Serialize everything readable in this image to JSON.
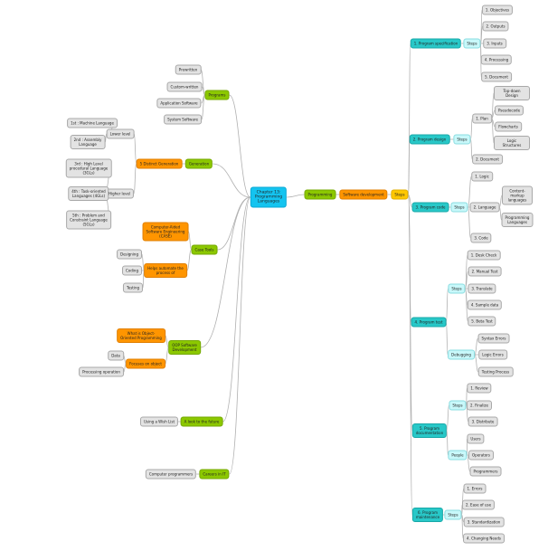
{
  "colors": {
    "root": "#14c4f0",
    "branch": "#8cc800",
    "sub": "#ff9500",
    "steps_hub": "#ffc800",
    "phase": "#28c8c8",
    "step_group": "#c8f8fa",
    "leaf": "#e3e3e3",
    "link": "#b0b0b0"
  },
  "nodes": [
    {
      "id": "root",
      "label": "Chapter 13:\nProgramming\nLanguages",
      "parent": null,
      "style": "cyan root"
    },
    {
      "id": "programs",
      "label": "Programs",
      "parent": "root",
      "style": "green"
    },
    {
      "id": "prewritten",
      "label": "Prewritten",
      "parent": "programs",
      "style": "grey"
    },
    {
      "id": "custom",
      "label": "Custom-written",
      "parent": "programs",
      "style": "grey"
    },
    {
      "id": "appsw",
      "label": "Application Software",
      "parent": "programs",
      "style": "grey"
    },
    {
      "id": "syssw",
      "label": "System Software",
      "parent": "programs",
      "style": "grey"
    },
    {
      "id": "generation",
      "label": "Generation",
      "parent": "root",
      "style": "green"
    },
    {
      "id": "fivegen",
      "label": "5 Distinct Generation",
      "parent": "generation",
      "style": "orange"
    },
    {
      "id": "lower",
      "label": "Lower level",
      "parent": "fivegen",
      "style": "grey"
    },
    {
      "id": "gen1",
      "label": "1st : Machine Language",
      "parent": "lower",
      "style": "grey"
    },
    {
      "id": "gen2",
      "label": "2nd : Assembly\nLanguage",
      "parent": "lower",
      "style": "grey"
    },
    {
      "id": "higher",
      "label": "Higher level",
      "parent": "fivegen",
      "style": "grey"
    },
    {
      "id": "gen3",
      "label": "3rd : High Level\nprocedural Language\n(3GLs)",
      "parent": "higher",
      "style": "grey"
    },
    {
      "id": "gen4",
      "label": "4th : Task-oriented\nLanguages (4GLs)",
      "parent": "higher",
      "style": "grey"
    },
    {
      "id": "gen5",
      "label": "5th : Problem and\nConstraint Language\n(5GLs)",
      "parent": "higher",
      "style": "grey"
    },
    {
      "id": "casetools",
      "label": "Case Tools",
      "parent": "root",
      "style": "green"
    },
    {
      "id": "case",
      "label": "Computer-Aided\nSoftware Engineering\n(CASE)",
      "parent": "casetools",
      "style": "orange"
    },
    {
      "id": "helps",
      "label": "Helps automate the\nprocess of",
      "parent": "casetools",
      "style": "orange"
    },
    {
      "id": "designing",
      "label": "Designing",
      "parent": "helps",
      "style": "grey"
    },
    {
      "id": "coding",
      "label": "Coding",
      "parent": "helps",
      "style": "grey"
    },
    {
      "id": "testing",
      "label": "Testing",
      "parent": "helps",
      "style": "grey"
    },
    {
      "id": "oop",
      "label": "OOP Software\nDevelopment",
      "parent": "root",
      "style": "green"
    },
    {
      "id": "whatoop",
      "label": "What is Object-\nOriented Programming",
      "parent": "oop",
      "style": "orange"
    },
    {
      "id": "focuses",
      "label": "Focuses on object",
      "parent": "oop",
      "style": "orange"
    },
    {
      "id": "data",
      "label": "Data",
      "parent": "focuses",
      "style": "grey"
    },
    {
      "id": "procop",
      "label": "Processing operation",
      "parent": "focuses",
      "style": "grey"
    },
    {
      "id": "future",
      "label": "A look to the future",
      "parent": "root",
      "style": "green"
    },
    {
      "id": "wishlist",
      "label": "Using a Wish List",
      "parent": "future",
      "style": "grey"
    },
    {
      "id": "careers",
      "label": "Careers in IT",
      "parent": "root",
      "style": "green"
    },
    {
      "id": "progr",
      "label": "Computer programmers",
      "parent": "careers",
      "style": "grey"
    },
    {
      "id": "programming",
      "label": "Programming",
      "parent": "root",
      "style": "green"
    },
    {
      "id": "swdev",
      "label": "Software development",
      "parent": "programming",
      "style": "orange"
    },
    {
      "id": "steps",
      "label": "Steps",
      "parent": "swdev",
      "style": "yellow"
    },
    {
      "id": "p1",
      "label": "1. Program specification",
      "parent": "steps",
      "style": "teal"
    },
    {
      "id": "p1s",
      "label": "Steps",
      "parent": "p1",
      "style": "light"
    },
    {
      "id": "p1a",
      "label": "1. Objectives",
      "parent": "p1s",
      "style": "grey"
    },
    {
      "id": "p1b",
      "label": "2. Outputs",
      "parent": "p1s",
      "style": "grey"
    },
    {
      "id": "p1c",
      "label": "3. Inputs",
      "parent": "p1s",
      "style": "grey"
    },
    {
      "id": "p1d",
      "label": "4. Processing",
      "parent": "p1s",
      "style": "grey"
    },
    {
      "id": "p1e",
      "label": "5. Document",
      "parent": "p1s",
      "style": "grey"
    },
    {
      "id": "p2",
      "label": "2. Program design",
      "parent": "steps",
      "style": "teal"
    },
    {
      "id": "p2s",
      "label": "Steps",
      "parent": "p2",
      "style": "light"
    },
    {
      "id": "plan",
      "label": "1. Plan",
      "parent": "p2s",
      "style": "grey"
    },
    {
      "id": "topdown",
      "label": "Top-down Design",
      "parent": "plan",
      "style": "grey"
    },
    {
      "id": "pseudo",
      "label": "Pseudocode",
      "parent": "plan",
      "style": "grey"
    },
    {
      "id": "flow",
      "label": "Flowcharts",
      "parent": "plan",
      "style": "grey"
    },
    {
      "id": "logicst",
      "label": "Logic Structures",
      "parent": "plan",
      "style": "grey"
    },
    {
      "id": "p2doc",
      "label": "2. Document",
      "parent": "p2s",
      "style": "grey"
    },
    {
      "id": "p3",
      "label": "3. Program code",
      "parent": "steps",
      "style": "teal"
    },
    {
      "id": "p3s",
      "label": "Steps",
      "parent": "p3",
      "style": "light"
    },
    {
      "id": "p3a",
      "label": "1. Logic",
      "parent": "p3s",
      "style": "grey"
    },
    {
      "id": "p3b",
      "label": "2. Language",
      "parent": "p3s",
      "style": "grey"
    },
    {
      "id": "content",
      "label": "Content-markup\nlanguages",
      "parent": "p3b",
      "style": "grey"
    },
    {
      "id": "proglang",
      "label": "Programming\nLanguages",
      "parent": "p3b",
      "style": "grey"
    },
    {
      "id": "p3c",
      "label": "3. Code",
      "parent": "p3s",
      "style": "grey"
    },
    {
      "id": "p4",
      "label": "4. Program test",
      "parent": "steps",
      "style": "teal"
    },
    {
      "id": "p4s",
      "label": "Steps",
      "parent": "p4",
      "style": "light"
    },
    {
      "id": "p4a",
      "label": "1. Desk Check",
      "parent": "p4s",
      "style": "grey"
    },
    {
      "id": "p4b",
      "label": "2. Manual Test",
      "parent": "p4s",
      "style": "grey"
    },
    {
      "id": "p4c",
      "label": "3. Translate",
      "parent": "p4s",
      "style": "grey"
    },
    {
      "id": "p4d",
      "label": "4. Sample data",
      "parent": "p4s",
      "style": "grey"
    },
    {
      "id": "p4e",
      "label": "5. Beta Test",
      "parent": "p4s",
      "style": "grey"
    },
    {
      "id": "debug",
      "label": "Debugging",
      "parent": "p4",
      "style": "light"
    },
    {
      "id": "syntax",
      "label": "Syntax Errors",
      "parent": "debug",
      "style": "grey"
    },
    {
      "id": "logicerr",
      "label": "Logic Errors",
      "parent": "debug",
      "style": "grey"
    },
    {
      "id": "testproc",
      "label": "Testing Process",
      "parent": "debug",
      "style": "grey"
    },
    {
      "id": "p5",
      "label": "5. Program\ndocumentation",
      "parent": "steps",
      "style": "teal"
    },
    {
      "id": "p5s",
      "label": "Steps",
      "parent": "p5",
      "style": "light"
    },
    {
      "id": "p5a",
      "label": "1. Review",
      "parent": "p5s",
      "style": "grey"
    },
    {
      "id": "p5b",
      "label": "2. Finalize",
      "parent": "p5s",
      "style": "grey"
    },
    {
      "id": "p5c",
      "label": "3. Distribute",
      "parent": "p5s",
      "style": "grey"
    },
    {
      "id": "people",
      "label": "People",
      "parent": "p5",
      "style": "light"
    },
    {
      "id": "users",
      "label": "Users",
      "parent": "people",
      "style": "grey"
    },
    {
      "id": "operators",
      "label": "Operators",
      "parent": "people",
      "style": "grey"
    },
    {
      "id": "programmers",
      "label": "Programmers",
      "parent": "people",
      "style": "grey"
    },
    {
      "id": "p6",
      "label": "6. Program\nmaintenance",
      "parent": "steps",
      "style": "teal"
    },
    {
      "id": "p6s",
      "label": "Steps",
      "parent": "p6",
      "style": "light"
    },
    {
      "id": "p6a",
      "label": "1. Errors",
      "parent": "p6s",
      "style": "grey"
    },
    {
      "id": "p6b",
      "label": "2. Ease of use",
      "parent": "p6s",
      "style": "grey"
    },
    {
      "id": "p6c",
      "label": "3. Standardization",
      "parent": "p6s",
      "style": "grey"
    },
    {
      "id": "p6d",
      "label": "4. Changing Needs",
      "parent": "p6s",
      "style": "grey"
    }
  ]
}
